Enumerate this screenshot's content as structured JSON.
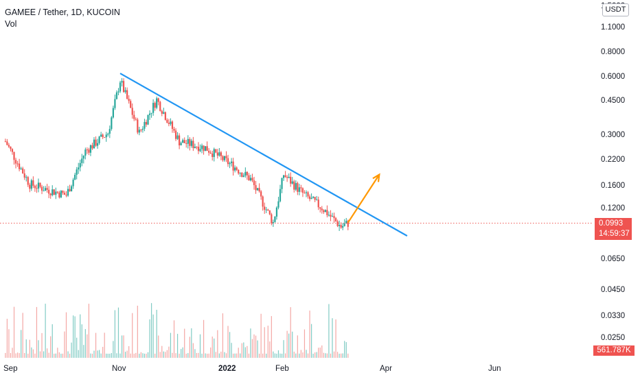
{
  "header": {
    "symbol": "GAMEE / Tether, 1D, KUCOIN",
    "indicator": "Vol"
  },
  "axis": {
    "unit": "USDT",
    "price_ticks": [
      "1.5000",
      "1.1000",
      "0.8000",
      "0.6000",
      "0.4500",
      "0.3000",
      "0.2200",
      "0.1600",
      "0.1200",
      "0.0650",
      "0.0450",
      "0.0330",
      "0.0250"
    ],
    "time_ticks": [
      {
        "label": "Sep",
        "bold": false
      },
      {
        "label": "Nov",
        "bold": false
      },
      {
        "label": "2022",
        "bold": true
      },
      {
        "label": "Feb",
        "bold": false
      },
      {
        "label": "Apr",
        "bold": false
      },
      {
        "label": "Jun",
        "bold": false
      }
    ]
  },
  "last_price": {
    "value": "0.0993",
    "countdown": "14:59:37"
  },
  "volume_label": "561.787K",
  "colors": {
    "up": "#26a69a",
    "down": "#ef5350",
    "trendline": "#2196f3",
    "arrow": "#ff9800",
    "price_line": "#ef5350"
  },
  "chart_data": {
    "type": "candlestick",
    "title": "GAMEE / Tether, 1D, KUCOIN",
    "scale": "log",
    "ylim": [
      0.02,
      1.6
    ],
    "approx_close_path": [
      {
        "date": "2021-08-27",
        "close": 0.27
      },
      {
        "date": "2021-09-10",
        "close": 0.16
      },
      {
        "date": "2021-10-01",
        "close": 0.14
      },
      {
        "date": "2021-10-12",
        "close": 0.24
      },
      {
        "date": "2021-10-25",
        "close": 0.3
      },
      {
        "date": "2021-11-01",
        "close": 0.57
      },
      {
        "date": "2021-11-12",
        "close": 0.3
      },
      {
        "date": "2021-11-22",
        "close": 0.45
      },
      {
        "date": "2021-12-05",
        "close": 0.27
      },
      {
        "date": "2021-12-20",
        "close": 0.25
      },
      {
        "date": "2022-01-05",
        "close": 0.2
      },
      {
        "date": "2022-01-15",
        "close": 0.17
      },
      {
        "date": "2022-01-28",
        "close": 0.1
      },
      {
        "date": "2022-02-03",
        "close": 0.18
      },
      {
        "date": "2022-02-15",
        "close": 0.14
      },
      {
        "date": "2022-02-25",
        "close": 0.12
      },
      {
        "date": "2022-03-08",
        "close": 0.095
      },
      {
        "date": "2022-03-12",
        "close": 0.0993
      }
    ],
    "trendline": [
      {
        "date": "2021-11-01",
        "price": 0.62
      },
      {
        "date": "2022-04-15",
        "price": 0.085
      }
    ],
    "projection_arrow": [
      {
        "date": "2022-03-12",
        "price": 0.1
      },
      {
        "date": "2022-03-30",
        "price": 0.18
      }
    ],
    "last_price": 0.0993,
    "last_volume": "561.787K"
  }
}
